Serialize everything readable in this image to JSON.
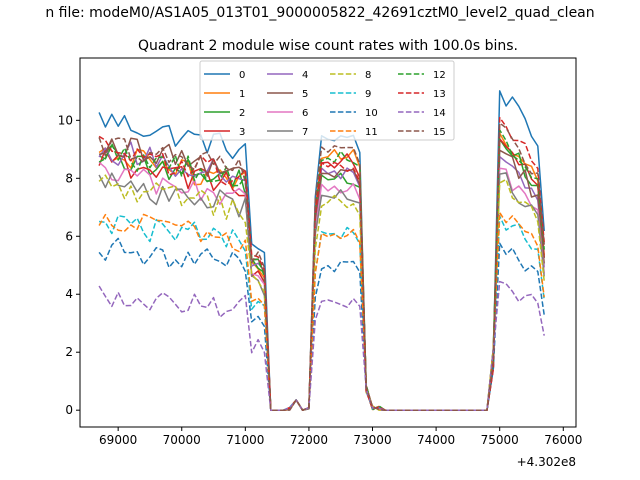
{
  "chart_data": {
    "type": "line",
    "suptitle": "n file: modeM0/AS1A05_013T01_9000005822_42691cztM0_level2_quad_clean",
    "title": "Quadrant 2 module wise count rates with 100.0s bins.",
    "xlabel": "",
    "ylabel": "",
    "x_offset_label": "+4.302e8",
    "xlim": [
      68400,
      76200
    ],
    "ylim": [
      -0.58,
      12.15
    ],
    "x_ticks": [
      69000,
      70000,
      71000,
      72000,
      73000,
      74000,
      75000,
      76000
    ],
    "x_tick_labels": [
      "69000",
      "70000",
      "71000",
      "72000",
      "73000",
      "74000",
      "75000",
      "76000"
    ],
    "y_ticks": [
      0,
      2,
      4,
      6,
      8,
      10
    ],
    "y_tick_labels": [
      "0",
      "2",
      "4",
      "6",
      "8",
      "10"
    ],
    "legend_placement": "upper-center",
    "grid": false,
    "segments": [
      {
        "start": 68700,
        "count": 27
      },
      {
        "start": 71400,
        "count": 3
      },
      {
        "start": 71700,
        "count": 7
      },
      {
        "start": 72400,
        "count": 4
      },
      {
        "start": 72800,
        "count": 4
      },
      {
        "start": 73200,
        "count": 17
      },
      {
        "start": 74900,
        "count": 9
      }
    ],
    "series": [
      {
        "name": "0",
        "color": "#1f77b4",
        "dash": "solid",
        "level": 9.6,
        "lobe": 9.4,
        "lobe2": 10.6
      },
      {
        "name": "1",
        "color": "#ff7f0e",
        "dash": "solid",
        "level": 8.4,
        "lobe": 8.8,
        "lobe2": 9.2
      },
      {
        "name": "2",
        "color": "#2ca02c",
        "dash": "solid",
        "level": 8.4,
        "lobe": 8.0,
        "lobe2": 9.0
      },
      {
        "name": "3",
        "color": "#d62728",
        "dash": "solid",
        "level": 8.2,
        "lobe": 8.6,
        "lobe2": 9.0
      },
      {
        "name": "4",
        "color": "#9467bd",
        "dash": "solid",
        "level": 8.6,
        "lobe": 8.2,
        "lobe2": 8.4
      },
      {
        "name": "5",
        "color": "#8c564b",
        "dash": "solid",
        "level": 8.8,
        "lobe": 8.2,
        "lobe2": 8.6
      },
      {
        "name": "6",
        "color": "#e377c2",
        "dash": "solid",
        "level": 7.8,
        "lobe": 7.6,
        "lobe2": 8.0
      },
      {
        "name": "7",
        "color": "#7f7f7f",
        "dash": "solid",
        "level": 7.5,
        "lobe": 7.4,
        "lobe2": 7.8
      },
      {
        "name": "8",
        "color": "#bcbd22",
        "dash": "dashed",
        "level": 7.4,
        "lobe": 7.2,
        "lobe2": 7.5
      },
      {
        "name": "9",
        "color": "#17becf",
        "dash": "dashed",
        "level": 6.2,
        "lobe": 6.1,
        "lobe2": 6.4
      },
      {
        "name": "10",
        "color": "#1f77b4",
        "dash": "dashed",
        "level": 5.3,
        "lobe": 5.0,
        "lobe2": 5.5
      },
      {
        "name": "11",
        "color": "#ff7f0e",
        "dash": "dashed",
        "level": 6.3,
        "lobe": 6.0,
        "lobe2": 6.5
      },
      {
        "name": "12",
        "color": "#2ca02c",
        "dash": "dashed",
        "level": 8.5,
        "lobe": 8.7,
        "lobe2": 9.2
      },
      {
        "name": "13",
        "color": "#d62728",
        "dash": "dashed",
        "level": 8.6,
        "lobe": 8.4,
        "lobe2": 9.6
      },
      {
        "name": "14",
        "color": "#9467bd",
        "dash": "dashed",
        "level": 3.8,
        "lobe": 3.8,
        "lobe2": 4.2
      },
      {
        "name": "15",
        "color": "#8c564b",
        "dash": "dashed",
        "level": 8.8,
        "lobe": 8.9,
        "lobe2": 9.4
      }
    ]
  }
}
